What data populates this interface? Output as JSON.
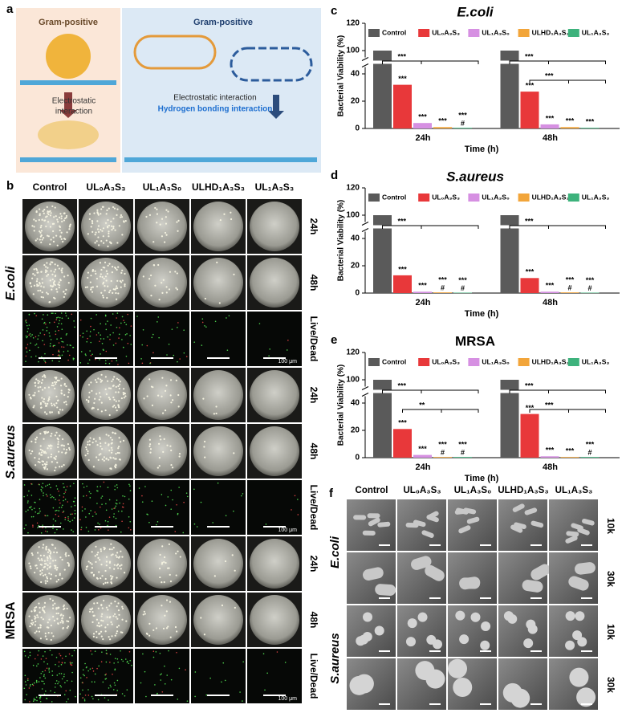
{
  "panel_a": {
    "label": "a",
    "left_title": "Gram-positive",
    "right_title": "Gram-positive",
    "left_caption": [
      "Electrostatic",
      "interaction"
    ],
    "right_caption_1": "Electrostatic interaction",
    "right_caption_2": "Hydrogen bonding interaction"
  },
  "panel_b": {
    "label": "b",
    "columns": [
      "Control",
      "UL₀A₃S₃",
      "UL₁A₃S₀",
      "ULHD₁A₃S₃",
      "UL₁A₃S₃"
    ],
    "groups": [
      {
        "name": "E.coli",
        "rows": [
          "24h",
          "48h",
          "Live/Dead"
        ]
      },
      {
        "name": "S.aureus",
        "rows": [
          "24h",
          "48h",
          "Live/Dead"
        ]
      },
      {
        "name": "MRSA",
        "rows": [
          "24h",
          "48h",
          "Live/Dead"
        ]
      }
    ],
    "scale_bar": "100 μm"
  },
  "chart_data": [
    {
      "type": "bar",
      "panel": "c",
      "title": "E.coli",
      "title_style": "italic",
      "x_label": "Time (h)",
      "y_label": "Bacterial Viability (%)",
      "categories": [
        "24h",
        "48h"
      ],
      "ylim": [
        0,
        120
      ],
      "yticks": [
        0,
        20,
        40,
        100,
        120
      ],
      "y_break": [
        45,
        95
      ],
      "series": [
        {
          "name": "Control",
          "color": "#5a5a5a",
          "values": [
            100,
            100
          ],
          "stars": [
            null,
            null
          ],
          "hash": [
            null,
            null
          ]
        },
        {
          "name": "UL₀A₃S₃",
          "color": "#e8383a",
          "values": [
            32,
            27
          ],
          "stars": [
            "***",
            "***"
          ],
          "hash": [
            null,
            null
          ]
        },
        {
          "name": "UL₁A₃S₀",
          "color": "#d690e2",
          "values": [
            4,
            3
          ],
          "stars": [
            "***",
            "***"
          ],
          "hash": [
            null,
            null
          ]
        },
        {
          "name": "ULHD₁A₃S₃",
          "color": "#f2a53a",
          "values": [
            1,
            1
          ],
          "stars": [
            "***",
            "***"
          ],
          "hash": [
            null,
            null
          ]
        },
        {
          "name": "UL₁A₃S₃",
          "color": "#3db27c",
          "values": [
            0.5,
            0.5
          ],
          "stars": [
            "***",
            "***"
          ],
          "hash": [
            "#",
            null
          ]
        }
      ],
      "brackets": [
        [
          "***"
        ],
        [
          "***",
          "***"
        ]
      ]
    },
    {
      "type": "bar",
      "panel": "d",
      "title": "S.aureus",
      "title_style": "italic",
      "x_label": "Time (h)",
      "y_label": "Bacterial Viability (%)",
      "categories": [
        "24h",
        "48h"
      ],
      "ylim": [
        0,
        120
      ],
      "yticks": [
        0,
        20,
        40,
        100,
        120
      ],
      "y_break": [
        45,
        95
      ],
      "series": [
        {
          "name": "Control",
          "color": "#5a5a5a",
          "values": [
            100,
            100
          ],
          "stars": [
            null,
            null
          ],
          "hash": [
            null,
            null
          ]
        },
        {
          "name": "UL₀A₃S₃",
          "color": "#e8383a",
          "values": [
            13,
            11
          ],
          "stars": [
            "***",
            "***"
          ],
          "hash": [
            null,
            null
          ]
        },
        {
          "name": "UL₁A₃S₀",
          "color": "#d690e2",
          "values": [
            1,
            1
          ],
          "stars": [
            "***",
            "***"
          ],
          "hash": [
            null,
            null
          ]
        },
        {
          "name": "ULHD₁A₃S₃",
          "color": "#f2a53a",
          "values": [
            0.5,
            0.5
          ],
          "stars": [
            "***",
            "***"
          ],
          "hash": [
            "#",
            "#"
          ]
        },
        {
          "name": "UL₁A₃S₃",
          "color": "#3db27c",
          "values": [
            0.3,
            0.3
          ],
          "stars": [
            "***",
            "***"
          ],
          "hash": [
            "#",
            "#"
          ]
        }
      ],
      "brackets": [
        [
          "***"
        ],
        [
          "***"
        ]
      ]
    },
    {
      "type": "bar",
      "panel": "e",
      "title": "MRSA",
      "title_style": "normal",
      "x_label": "Time (h)",
      "y_label": "Bacterial Viability (%)",
      "categories": [
        "24h",
        "48h"
      ],
      "ylim": [
        0,
        120
      ],
      "yticks": [
        0,
        20,
        40,
        100,
        120
      ],
      "y_break": [
        45,
        95
      ],
      "series": [
        {
          "name": "Control",
          "color": "#5a5a5a",
          "values": [
            100,
            100
          ],
          "stars": [
            null,
            null
          ],
          "hash": [
            null,
            null
          ]
        },
        {
          "name": "UL₀A₃S₃",
          "color": "#e8383a",
          "values": [
            21,
            32
          ],
          "stars": [
            "***",
            "***"
          ],
          "hash": [
            null,
            null
          ]
        },
        {
          "name": "UL₁A₃S₀",
          "color": "#d690e2",
          "values": [
            2,
            1
          ],
          "stars": [
            "***",
            "***"
          ],
          "hash": [
            null,
            null
          ]
        },
        {
          "name": "ULHD₁A₃S₃",
          "color": "#f2a53a",
          "values": [
            0.5,
            0.5
          ],
          "stars": [
            "***",
            "***"
          ],
          "hash": [
            "#",
            null
          ]
        },
        {
          "name": "UL₁A₃S₃",
          "color": "#3db27c",
          "values": [
            0.5,
            0.5
          ],
          "stars": [
            "***",
            "***"
          ],
          "hash": [
            "#",
            "#"
          ]
        }
      ],
      "brackets": [
        [
          "***",
          "**"
        ],
        [
          "***",
          "***"
        ]
      ]
    }
  ],
  "panel_f": {
    "label": "f",
    "columns": [
      "Control",
      "UL₀A₃S₃",
      "UL₁A₃S₀",
      "ULHD₁A₃S₃",
      "UL₁A₃S₃"
    ],
    "groups": [
      {
        "name": "E.coli",
        "rows": [
          "10k",
          "30k"
        ]
      },
      {
        "name": "S.aureus",
        "rows": [
          "10k",
          "30k"
        ]
      }
    ]
  }
}
